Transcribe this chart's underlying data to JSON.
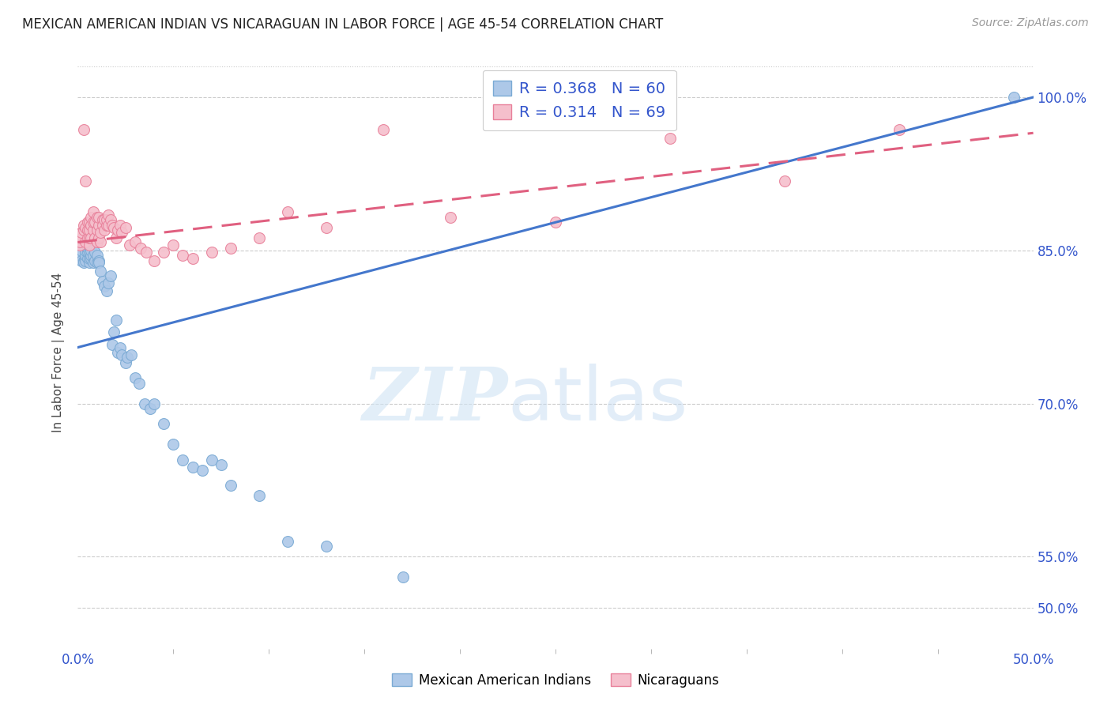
{
  "title": "MEXICAN AMERICAN INDIAN VS NICARAGUAN IN LABOR FORCE | AGE 45-54 CORRELATION CHART",
  "source": "Source: ZipAtlas.com",
  "ylabel": "In Labor Force | Age 45-54",
  "xmin": 0.0,
  "xmax": 0.5,
  "ymin": 0.46,
  "ymax": 1.04,
  "blue_color": "#adc8e8",
  "blue_edge": "#7aaad4",
  "pink_color": "#f5bfcc",
  "pink_edge": "#e8809a",
  "trend_blue": "#4477cc",
  "trend_pink": "#e06080",
  "legend_blue_R": "0.368",
  "legend_blue_N": "60",
  "legend_pink_R": "0.314",
  "legend_pink_N": "69",
  "legend_label_blue": "Mexican American Indians",
  "legend_label_pink": "Nicaraguans",
  "ytick_vals": [
    0.5,
    0.55,
    0.7,
    0.85,
    1.0
  ],
  "ytick_labels": [
    "50.0%",
    "55.0%",
    "70.0%",
    "85.0%",
    "100.0%"
  ],
  "blue_x": [
    0.001,
    0.002,
    0.002,
    0.003,
    0.003,
    0.003,
    0.004,
    0.004,
    0.004,
    0.005,
    0.005,
    0.005,
    0.006,
    0.006,
    0.006,
    0.006,
    0.007,
    0.007,
    0.007,
    0.008,
    0.008,
    0.009,
    0.009,
    0.01,
    0.01,
    0.011,
    0.011,
    0.012,
    0.013,
    0.014,
    0.015,
    0.016,
    0.017,
    0.018,
    0.019,
    0.02,
    0.021,
    0.022,
    0.023,
    0.025,
    0.026,
    0.028,
    0.03,
    0.032,
    0.035,
    0.038,
    0.04,
    0.045,
    0.05,
    0.055,
    0.06,
    0.065,
    0.07,
    0.075,
    0.08,
    0.095,
    0.11,
    0.13,
    0.17,
    0.49
  ],
  "blue_y": [
    0.845,
    0.84,
    0.85,
    0.84,
    0.838,
    0.855,
    0.84,
    0.845,
    0.85,
    0.842,
    0.848,
    0.852,
    0.838,
    0.842,
    0.848,
    0.855,
    0.842,
    0.845,
    0.85,
    0.838,
    0.845,
    0.84,
    0.848,
    0.838,
    0.845,
    0.84,
    0.838,
    0.83,
    0.82,
    0.815,
    0.81,
    0.818,
    0.825,
    0.758,
    0.77,
    0.782,
    0.75,
    0.755,
    0.748,
    0.74,
    0.745,
    0.748,
    0.725,
    0.72,
    0.7,
    0.695,
    0.7,
    0.68,
    0.66,
    0.645,
    0.638,
    0.635,
    0.645,
    0.64,
    0.62,
    0.61,
    0.565,
    0.56,
    0.53,
    1.0
  ],
  "pink_x": [
    0.001,
    0.001,
    0.002,
    0.002,
    0.003,
    0.003,
    0.003,
    0.004,
    0.004,
    0.004,
    0.005,
    0.005,
    0.005,
    0.006,
    0.006,
    0.006,
    0.006,
    0.007,
    0.007,
    0.007,
    0.008,
    0.008,
    0.008,
    0.009,
    0.009,
    0.01,
    0.01,
    0.01,
    0.011,
    0.011,
    0.011,
    0.012,
    0.012,
    0.013,
    0.013,
    0.014,
    0.014,
    0.015,
    0.015,
    0.016,
    0.016,
    0.017,
    0.018,
    0.019,
    0.02,
    0.021,
    0.022,
    0.023,
    0.025,
    0.027,
    0.03,
    0.033,
    0.036,
    0.04,
    0.045,
    0.05,
    0.055,
    0.06,
    0.07,
    0.08,
    0.095,
    0.11,
    0.13,
    0.16,
    0.195,
    0.25,
    0.31,
    0.37,
    0.43
  ],
  "pink_y": [
    0.855,
    0.858,
    0.862,
    0.868,
    0.87,
    0.875,
    0.968,
    0.858,
    0.918,
    0.872,
    0.862,
    0.87,
    0.878,
    0.855,
    0.862,
    0.87,
    0.878,
    0.862,
    0.875,
    0.882,
    0.87,
    0.878,
    0.888,
    0.862,
    0.878,
    0.858,
    0.87,
    0.882,
    0.862,
    0.875,
    0.882,
    0.858,
    0.868,
    0.88,
    0.875,
    0.87,
    0.88,
    0.875,
    0.88,
    0.875,
    0.885,
    0.88,
    0.875,
    0.872,
    0.862,
    0.87,
    0.875,
    0.868,
    0.872,
    0.855,
    0.858,
    0.852,
    0.848,
    0.84,
    0.848,
    0.855,
    0.845,
    0.842,
    0.848,
    0.852,
    0.862,
    0.888,
    0.872,
    0.968,
    0.882,
    0.878,
    0.96,
    0.918,
    0.968
  ]
}
